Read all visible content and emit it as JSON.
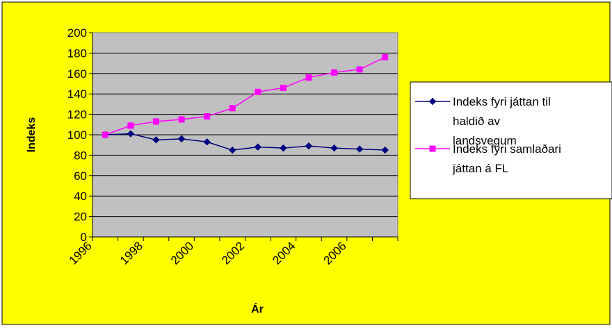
{
  "chart_data": {
    "type": "line",
    "ylabel": "Indeks",
    "xlabel": "Ár",
    "ylim": [
      0,
      200
    ],
    "y_ticks": [
      0,
      20,
      40,
      60,
      80,
      100,
      120,
      140,
      160,
      180,
      200
    ],
    "x_tick_labels": [
      "1996",
      "1998",
      "2000",
      "2002",
      "2004",
      "2006"
    ],
    "x": [
      1996,
      1997,
      1998,
      1999,
      2000,
      2001,
      2002,
      2003,
      2004,
      2005,
      2006,
      2007
    ],
    "grid": true,
    "legend_position": "right",
    "series": [
      {
        "name": "Indeks fyri játtan til haldið av landsvegum",
        "legend_lines": [
          "Indeks fyri játtan til",
          "haldið av",
          "landsvegum"
        ],
        "values": [
          100,
          101,
          95,
          96,
          93,
          85,
          88,
          87,
          89,
          87,
          86,
          85
        ],
        "color": "#000080",
        "marker": "diamond"
      },
      {
        "name": "Indeks fyri samlaðari játtan á FL",
        "legend_lines": [
          "Indeks fyri samlaðari",
          "játtan á FL"
        ],
        "values": [
          100,
          109,
          113,
          115,
          118,
          126,
          142,
          146,
          156,
          161,
          164,
          176
        ],
        "color": "#FF00FF",
        "marker": "square"
      }
    ]
  },
  "colors": {
    "background": "#FFFF00",
    "plot_area": "#C0C0C0",
    "legend_background": "#FFFFFF"
  }
}
